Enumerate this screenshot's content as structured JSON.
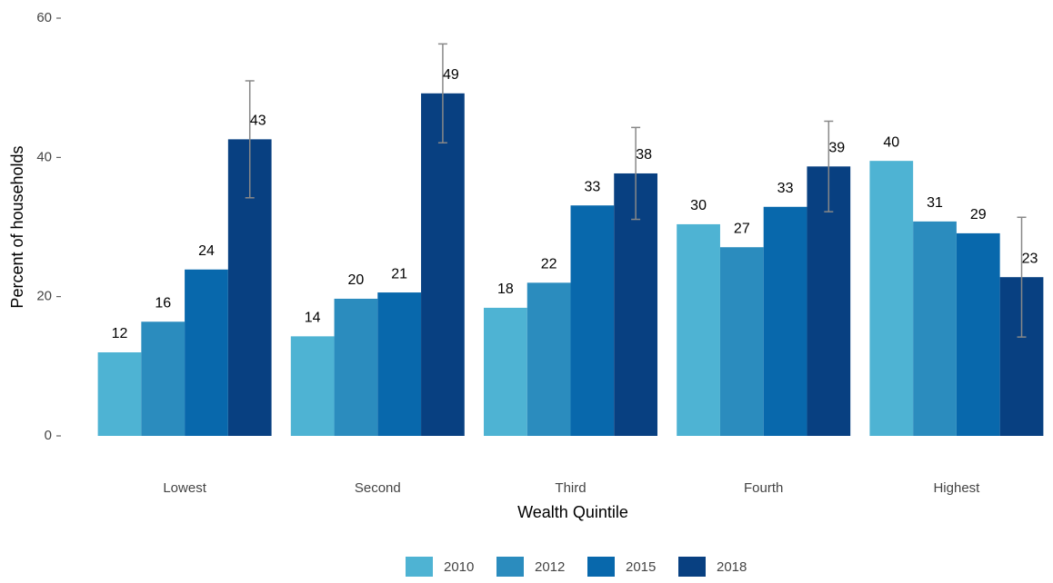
{
  "chart_data": {
    "type": "bar",
    "xlabel": "Wealth Quintile",
    "ylabel": "Percent of households",
    "categories": [
      "Lowest",
      "Second",
      "Third",
      "Fourth",
      "Highest"
    ],
    "ylim": [
      0,
      60
    ],
    "yticks": [
      0,
      20,
      40,
      60
    ],
    "grid": false,
    "legend": "bottom",
    "series": [
      {
        "name": "2010",
        "color": "#4eb3d3",
        "values": [
          12.0,
          14.3,
          18.4,
          30.4,
          39.5
        ],
        "value_labels": [
          "12",
          "14",
          "18",
          "30",
          "40"
        ]
      },
      {
        "name": "2012",
        "color": "#2b8cbe",
        "values": [
          16.4,
          19.7,
          22.0,
          27.1,
          30.8
        ],
        "value_labels": [
          "16",
          "20",
          "22",
          "27",
          "31"
        ]
      },
      {
        "name": "2015",
        "color": "#0868ac",
        "values": [
          23.9,
          20.6,
          33.1,
          32.9,
          29.1
        ],
        "value_labels": [
          "24",
          "21",
          "33",
          "33",
          "29"
        ]
      },
      {
        "name": "2018",
        "color": "#084081",
        "values": [
          42.6,
          49.2,
          37.7,
          38.7,
          22.8
        ],
        "value_labels": [
          "43",
          "49",
          "38",
          "39",
          "23"
        ],
        "errors": [
          8.4,
          7.1,
          6.6,
          6.5,
          8.6
        ]
      }
    ]
  }
}
